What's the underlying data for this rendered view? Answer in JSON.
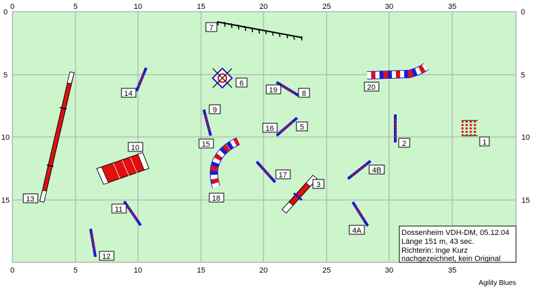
{
  "axis": {
    "x_ticks": [
      "0",
      "5",
      "10",
      "15",
      "20",
      "25",
      "30",
      "35"
    ],
    "y_ticks": [
      "0",
      "5",
      "10",
      "15"
    ]
  },
  "colors": {
    "field": "#ccf5cc",
    "grid": "#a6a6a6",
    "red": "#e01010",
    "blue": "#1c1ccc",
    "white": "#ffffff",
    "black": "#000000"
  },
  "obstacles": {
    "labels": {
      "l1": "1",
      "l2": "2",
      "l3": "3",
      "l4a": "4A",
      "l4b": "4B",
      "l5": "5",
      "l6": "6",
      "l7": "7",
      "l8": "8",
      "l9": "9",
      "l10": "10",
      "l11": "11",
      "l12": "12",
      "l13": "13",
      "l14": "14",
      "l15": "15",
      "l16": "16",
      "l17": "17",
      "l18": "18",
      "l19": "19",
      "l20": "20"
    }
  },
  "info_box": {
    "line1": "Dossenheim VDH-DM, 05.12.04",
    "line2": "Länge 151 m, 43 sec.",
    "line3": "Richterin: Inge Kurz",
    "line4": "nachgezeichnet, kein Original"
  },
  "footer": {
    "credit": "Agility Blues"
  }
}
